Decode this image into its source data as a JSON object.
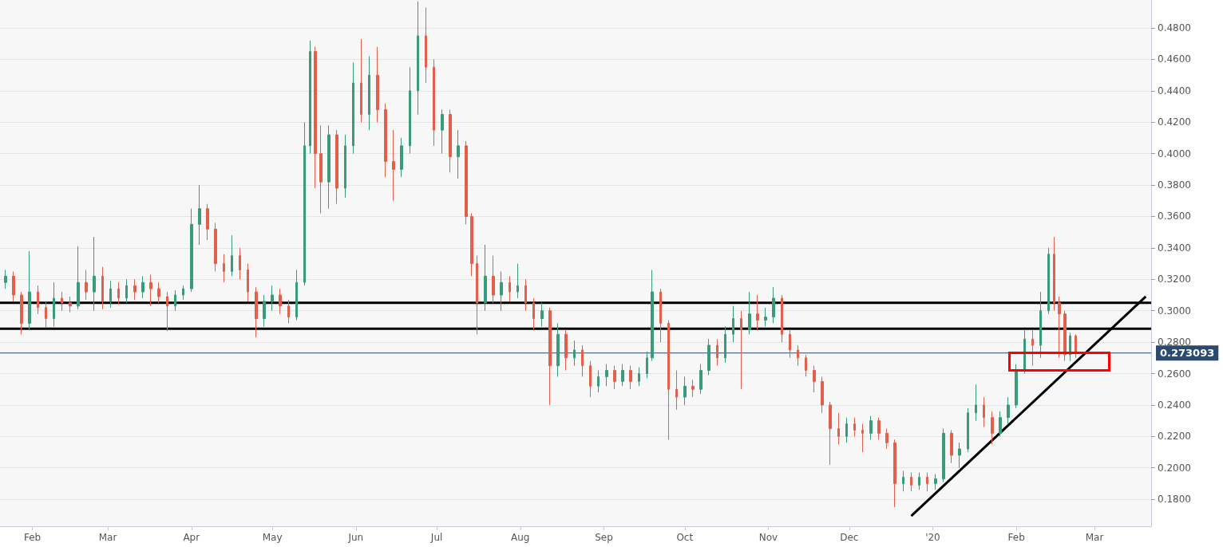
{
  "chart_data": {
    "type": "candlestick",
    "xlim": [
      "2019-01-20",
      "2020-03-22"
    ],
    "xticks": [
      {
        "value": "2019-02-01",
        "label": "Feb"
      },
      {
        "value": "2019-03-01",
        "label": "Mar"
      },
      {
        "value": "2019-04-01",
        "label": "Apr"
      },
      {
        "value": "2019-05-01",
        "label": "May"
      },
      {
        "value": "2019-06-01",
        "label": "Jun"
      },
      {
        "value": "2019-07-01",
        "label": "Jul"
      },
      {
        "value": "2019-08-01",
        "label": "Aug"
      },
      {
        "value": "2019-09-01",
        "label": "Sep"
      },
      {
        "value": "2019-10-01",
        "label": "Oct"
      },
      {
        "value": "2019-11-01",
        "label": "Nov"
      },
      {
        "value": "2019-12-01",
        "label": "Dec"
      },
      {
        "value": "2020-01-01",
        "label": "'20"
      },
      {
        "value": "2020-02-01",
        "label": "Feb"
      },
      {
        "value": "2020-03-01",
        "label": "Mar"
      }
    ],
    "ylim": [
      0.1628,
      0.4978
    ],
    "yticks": [
      {
        "value": 0.18,
        "label": "0.1800"
      },
      {
        "value": 0.2,
        "label": "0.2000"
      },
      {
        "value": 0.22,
        "label": "0.2200"
      },
      {
        "value": 0.24,
        "label": "0.2400"
      },
      {
        "value": 0.26,
        "label": "0.2600"
      },
      {
        "value": 0.28,
        "label": "0.2800"
      },
      {
        "value": 0.3,
        "label": "0.3000"
      },
      {
        "value": 0.32,
        "label": "0.3200"
      },
      {
        "value": 0.34,
        "label": "0.3400"
      },
      {
        "value": 0.36,
        "label": "0.3600"
      },
      {
        "value": 0.38,
        "label": "0.3800"
      },
      {
        "value": 0.4,
        "label": "0.4000"
      },
      {
        "value": 0.42,
        "label": "0.4200"
      },
      {
        "value": 0.44,
        "label": "0.4400"
      },
      {
        "value": 0.46,
        "label": "0.4600"
      },
      {
        "value": 0.48,
        "label": "0.4800"
      }
    ],
    "grid": "y",
    "series": [
      {
        "type": "candlestick",
        "color": "#3a9a7c",
        "x": [
          "2019-01-22",
          "2019-01-31",
          "2019-02-09",
          "2019-02-18",
          "2019-02-24",
          "2019-03-02",
          "2019-03-08",
          "2019-03-14",
          "2019-03-26",
          "2019-03-29",
          "2019-04-01",
          "2019-04-04",
          "2019-04-16",
          "2019-04-28",
          "2019-05-01",
          "2019-05-10",
          "2019-05-13",
          "2019-05-15",
          "2019-05-22",
          "2019-05-28",
          "2019-05-31",
          "2019-06-06",
          "2019-06-18",
          "2019-06-21",
          "2019-06-24",
          "2019-07-03",
          "2019-07-09",
          "2019-07-19",
          "2019-07-25",
          "2019-07-31",
          "2019-08-09",
          "2019-08-15",
          "2019-08-21",
          "2019-08-30",
          "2019-09-02",
          "2019-09-08",
          "2019-09-14",
          "2019-09-17",
          "2019-09-19",
          "2019-10-01",
          "2019-10-07",
          "2019-10-10",
          "2019-10-16",
          "2019-10-19",
          "2019-10-25",
          "2019-10-31",
          "2019-11-03",
          "2019-11-30",
          "2019-12-09",
          "2019-12-21",
          "2019-12-27",
          "2020-01-02",
          "2020-01-05",
          "2020-01-11",
          "2020-01-14",
          "2020-01-17",
          "2020-01-26",
          "2020-01-29",
          "2020-02-01",
          "2020-02-04",
          "2020-02-10",
          "2020-02-13",
          "2020-02-21"
        ],
        "ohlc": [
          [
            0.318,
            0.326,
            0.314,
            0.322
          ],
          [
            0.292,
            0.338,
            0.288,
            0.312
          ],
          [
            0.295,
            0.318,
            0.29,
            0.308
          ],
          [
            0.303,
            0.341,
            0.301,
            0.318
          ],
          [
            0.312,
            0.347,
            0.3,
            0.322
          ],
          [
            0.306,
            0.319,
            0.302,
            0.314
          ],
          [
            0.308,
            0.32,
            0.305,
            0.316
          ],
          [
            0.312,
            0.322,
            0.308,
            0.318
          ],
          [
            0.303,
            0.313,
            0.3,
            0.31
          ],
          [
            0.31,
            0.316,
            0.307,
            0.314
          ],
          [
            0.314,
            0.365,
            0.312,
            0.355
          ],
          [
            0.355,
            0.38,
            0.342,
            0.365
          ],
          [
            0.325,
            0.348,
            0.322,
            0.335
          ],
          [
            0.295,
            0.31,
            0.29,
            0.306
          ],
          [
            0.306,
            0.316,
            0.3,
            0.31
          ],
          [
            0.296,
            0.326,
            0.294,
            0.318
          ],
          [
            0.318,
            0.42,
            0.316,
            0.405
          ],
          [
            0.405,
            0.472,
            0.4,
            0.465
          ],
          [
            0.382,
            0.418,
            0.365,
            0.412
          ],
          [
            0.378,
            0.412,
            0.372,
            0.405
          ],
          [
            0.405,
            0.458,
            0.4,
            0.445
          ],
          [
            0.425,
            0.462,
            0.415,
            0.45
          ],
          [
            0.39,
            0.41,
            0.385,
            0.405
          ],
          [
            0.405,
            0.455,
            0.4,
            0.44
          ],
          [
            0.44,
            0.497,
            0.425,
            0.475
          ],
          [
            0.415,
            0.428,
            0.4,
            0.425
          ],
          [
            0.398,
            0.415,
            0.384,
            0.405
          ],
          [
            0.305,
            0.342,
            0.3,
            0.322
          ],
          [
            0.31,
            0.325,
            0.3,
            0.318
          ],
          [
            0.312,
            0.33,
            0.308,
            0.316
          ],
          [
            0.295,
            0.305,
            0.29,
            0.3
          ],
          [
            0.265,
            0.292,
            0.258,
            0.285
          ],
          [
            0.27,
            0.281,
            0.265,
            0.275
          ],
          [
            0.252,
            0.262,
            0.248,
            0.258
          ],
          [
            0.258,
            0.266,
            0.252,
            0.262
          ],
          [
            0.255,
            0.266,
            0.252,
            0.262
          ],
          [
            0.255,
            0.264,
            0.252,
            0.26
          ],
          [
            0.26,
            0.274,
            0.257,
            0.27
          ],
          [
            0.27,
            0.326,
            0.268,
            0.312
          ],
          [
            0.245,
            0.258,
            0.24,
            0.252
          ],
          [
            0.25,
            0.266,
            0.247,
            0.262
          ],
          [
            0.262,
            0.282,
            0.259,
            0.278
          ],
          [
            0.27,
            0.29,
            0.267,
            0.285
          ],
          [
            0.285,
            0.303,
            0.28,
            0.295
          ],
          [
            0.288,
            0.312,
            0.285,
            0.298
          ],
          [
            0.294,
            0.302,
            0.29,
            0.296
          ],
          [
            0.296,
            0.315,
            0.292,
            0.308
          ],
          [
            0.22,
            0.232,
            0.216,
            0.228
          ],
          [
            0.222,
            0.233,
            0.218,
            0.23
          ],
          [
            0.19,
            0.198,
            0.185,
            0.194
          ],
          [
            0.189,
            0.197,
            0.186,
            0.194
          ],
          [
            0.19,
            0.196,
            0.186,
            0.193
          ],
          [
            0.193,
            0.225,
            0.191,
            0.222
          ],
          [
            0.208,
            0.216,
            0.2,
            0.212
          ],
          [
            0.212,
            0.238,
            0.21,
            0.235
          ],
          [
            0.235,
            0.253,
            0.23,
            0.24
          ],
          [
            0.222,
            0.236,
            0.22,
            0.232
          ],
          [
            0.232,
            0.245,
            0.228,
            0.24
          ],
          [
            0.24,
            0.266,
            0.238,
            0.262
          ],
          [
            0.262,
            0.288,
            0.26,
            0.282
          ],
          [
            0.278,
            0.312,
            0.27,
            0.3
          ],
          [
            0.3,
            0.34,
            0.298,
            0.336
          ],
          [
            0.272,
            0.286,
            0.268,
            0.284
          ]
        ]
      },
      {
        "type": "candlestick",
        "color": "#e0604c",
        "x": [
          "2019-01-25",
          "2019-01-28",
          "2019-02-03",
          "2019-02-06",
          "2019-02-12",
          "2019-02-15",
          "2019-02-21",
          "2019-02-27",
          "2019-03-05",
          "2019-03-11",
          "2019-03-17",
          "2019-03-20",
          "2019-03-23",
          "2019-04-07",
          "2019-04-10",
          "2019-04-13",
          "2019-04-19",
          "2019-04-22",
          "2019-04-25",
          "2019-05-04",
          "2019-05-07",
          "2019-05-17",
          "2019-05-19",
          "2019-05-25",
          "2019-06-03",
          "2019-06-09",
          "2019-06-12",
          "2019-06-15",
          "2019-06-27",
          "2019-06-30",
          "2019-07-06",
          "2019-07-12",
          "2019-07-14",
          "2019-07-16",
          "2019-07-22",
          "2019-07-28",
          "2019-08-03",
          "2019-08-06",
          "2019-08-12",
          "2019-08-18",
          "2019-08-24",
          "2019-08-27",
          "2019-09-05",
          "2019-09-11",
          "2019-09-22",
          "2019-09-25",
          "2019-09-28",
          "2019-10-04",
          "2019-10-13",
          "2019-10-22",
          "2019-10-28",
          "2019-11-06",
          "2019-11-09",
          "2019-11-12",
          "2019-11-15",
          "2019-11-18",
          "2019-11-21",
          "2019-11-24",
          "2019-11-27",
          "2019-12-03",
          "2019-12-06",
          "2019-12-12",
          "2019-12-15",
          "2019-12-18",
          "2019-12-24",
          "2019-12-30",
          "2020-01-08",
          "2020-01-20",
          "2020-01-23",
          "2020-02-07",
          "2020-02-15",
          "2020-02-17",
          "2020-02-19",
          "2020-02-23"
        ],
        "ohlc": [
          [
            0.322,
            0.325,
            0.306,
            0.31
          ],
          [
            0.31,
            0.312,
            0.285,
            0.292
          ],
          [
            0.312,
            0.316,
            0.298,
            0.302
          ],
          [
            0.302,
            0.306,
            0.289,
            0.295
          ],
          [
            0.308,
            0.312,
            0.3,
            0.305
          ],
          [
            0.305,
            0.309,
            0.299,
            0.303
          ],
          [
            0.318,
            0.326,
            0.307,
            0.312
          ],
          [
            0.322,
            0.328,
            0.301,
            0.306
          ],
          [
            0.314,
            0.318,
            0.304,
            0.308
          ],
          [
            0.316,
            0.32,
            0.307,
            0.312
          ],
          [
            0.318,
            0.323,
            0.303,
            0.314
          ],
          [
            0.314,
            0.318,
            0.305,
            0.309
          ],
          [
            0.309,
            0.312,
            0.287,
            0.303
          ],
          [
            0.365,
            0.368,
            0.345,
            0.352
          ],
          [
            0.352,
            0.356,
            0.325,
            0.33
          ],
          [
            0.33,
            0.336,
            0.318,
            0.325
          ],
          [
            0.335,
            0.34,
            0.32,
            0.326
          ],
          [
            0.326,
            0.33,
            0.306,
            0.312
          ],
          [
            0.312,
            0.315,
            0.283,
            0.295
          ],
          [
            0.31,
            0.314,
            0.298,
            0.303
          ],
          [
            0.303,
            0.307,
            0.292,
            0.296
          ],
          [
            0.465,
            0.468,
            0.378,
            0.4
          ],
          [
            0.4,
            0.418,
            0.362,
            0.382
          ],
          [
            0.412,
            0.415,
            0.368,
            0.378
          ],
          [
            0.445,
            0.473,
            0.42,
            0.425
          ],
          [
            0.45,
            0.468,
            0.42,
            0.428
          ],
          [
            0.428,
            0.432,
            0.385,
            0.395
          ],
          [
            0.395,
            0.415,
            0.37,
            0.39
          ],
          [
            0.475,
            0.493,
            0.445,
            0.455
          ],
          [
            0.455,
            0.46,
            0.405,
            0.415
          ],
          [
            0.425,
            0.428,
            0.388,
            0.398
          ],
          [
            0.405,
            0.408,
            0.355,
            0.36
          ],
          [
            0.36,
            0.362,
            0.322,
            0.33
          ],
          [
            0.33,
            0.335,
            0.285,
            0.305
          ],
          [
            0.322,
            0.335,
            0.305,
            0.31
          ],
          [
            0.318,
            0.322,
            0.306,
            0.312
          ],
          [
            0.316,
            0.32,
            0.3,
            0.305
          ],
          [
            0.305,
            0.308,
            0.288,
            0.295
          ],
          [
            0.3,
            0.302,
            0.24,
            0.265
          ],
          [
            0.285,
            0.288,
            0.262,
            0.27
          ],
          [
            0.275,
            0.278,
            0.258,
            0.265
          ],
          [
            0.265,
            0.268,
            0.245,
            0.252
          ],
          [
            0.262,
            0.265,
            0.25,
            0.255
          ],
          [
            0.262,
            0.265,
            0.25,
            0.255
          ],
          [
            0.312,
            0.314,
            0.28,
            0.292
          ],
          [
            0.292,
            0.294,
            0.218,
            0.25
          ],
          [
            0.25,
            0.262,
            0.237,
            0.245
          ],
          [
            0.252,
            0.256,
            0.245,
            0.25
          ],
          [
            0.278,
            0.282,
            0.265,
            0.27
          ],
          [
            0.295,
            0.3,
            0.25,
            0.288
          ],
          [
            0.298,
            0.31,
            0.288,
            0.294
          ],
          [
            0.308,
            0.31,
            0.28,
            0.285
          ],
          [
            0.285,
            0.288,
            0.27,
            0.275
          ],
          [
            0.275,
            0.278,
            0.265,
            0.27
          ],
          [
            0.27,
            0.272,
            0.258,
            0.262
          ],
          [
            0.262,
            0.265,
            0.248,
            0.255
          ],
          [
            0.255,
            0.258,
            0.235,
            0.24
          ],
          [
            0.24,
            0.242,
            0.202,
            0.225
          ],
          [
            0.225,
            0.235,
            0.215,
            0.22
          ],
          [
            0.228,
            0.232,
            0.22,
            0.224
          ],
          [
            0.224,
            0.228,
            0.21,
            0.222
          ],
          [
            0.23,
            0.232,
            0.218,
            0.222
          ],
          [
            0.222,
            0.225,
            0.212,
            0.216
          ],
          [
            0.216,
            0.218,
            0.175,
            0.19
          ],
          [
            0.194,
            0.197,
            0.185,
            0.189
          ],
          [
            0.194,
            0.197,
            0.185,
            0.19
          ],
          [
            0.222,
            0.224,
            0.203,
            0.208
          ],
          [
            0.24,
            0.245,
            0.226,
            0.232
          ],
          [
            0.232,
            0.236,
            0.215,
            0.222
          ],
          [
            0.282,
            0.288,
            0.265,
            0.278
          ],
          [
            0.336,
            0.347,
            0.3,
            0.305
          ],
          [
            0.305,
            0.309,
            0.27,
            0.298
          ],
          [
            0.298,
            0.3,
            0.268,
            0.272
          ],
          [
            0.284,
            0.285,
            0.27,
            0.2731
          ]
        ]
      },
      {
        "type": "line",
        "color": "#000000",
        "x": [
          "2019-12-24",
          "2020-03-20"
        ],
        "values": [
          0.1693,
          0.309
        ]
      }
    ],
    "ref_lines": [
      {
        "axis": "y",
        "value": 0.305,
        "color": "#000000"
      },
      {
        "axis": "y",
        "value": 0.2885,
        "color": "#000000"
      },
      {
        "axis": "y",
        "value": 0.273093,
        "label": "0.273093",
        "color": "#2b4a6f"
      }
    ]
  }
}
